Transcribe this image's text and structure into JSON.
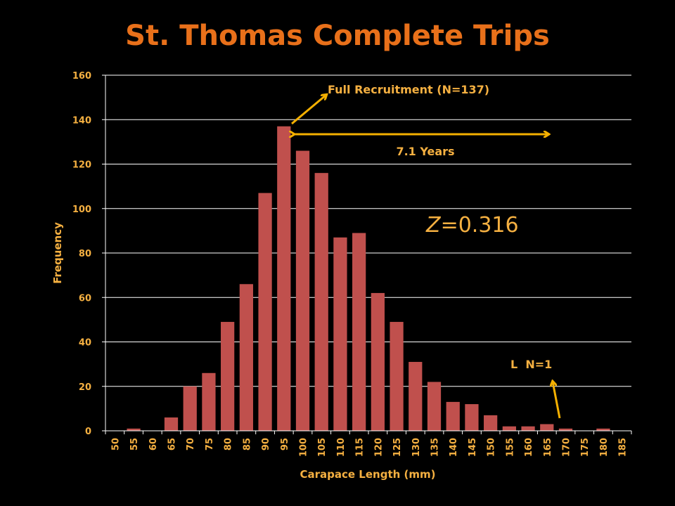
{
  "chart_data": {
    "type": "bar",
    "title": "St. Thomas Complete Trips",
    "xlabel": "Carapace Length (mm)",
    "ylabel": "Frequency",
    "ylim": [
      0,
      160
    ],
    "yticks": [
      "0",
      "20",
      "40",
      "60",
      "80",
      "100",
      "120",
      "140",
      "160"
    ],
    "grid": true,
    "categories": [
      "50",
      "55",
      "60",
      "65",
      "70",
      "75",
      "80",
      "85",
      "90",
      "95",
      "100",
      "105",
      "110",
      "115",
      "120",
      "125",
      "130",
      "135",
      "140",
      "145",
      "150",
      "155",
      "160",
      "165",
      "170",
      "175",
      "180",
      "185"
    ],
    "values": [
      0,
      1,
      0,
      6,
      20,
      26,
      49,
      66,
      107,
      137,
      126,
      116,
      87,
      89,
      62,
      49,
      31,
      22,
      13,
      12,
      7,
      2,
      2,
      3,
      1,
      0,
      1,
      0
    ],
    "annotations": {
      "full_recruitment": "Full Recruitment (N=137)",
      "years": "7.1 Years",
      "z_italic": "Z",
      "z_value": "=0.316",
      "l_prefix": "L",
      "l_suffix": "  N=1"
    },
    "colors": {
      "bar": "#c0504d",
      "text": "#f5b041",
      "title": "#e8701a",
      "arrow": "#f5b000",
      "grid": "#ffffff"
    }
  }
}
